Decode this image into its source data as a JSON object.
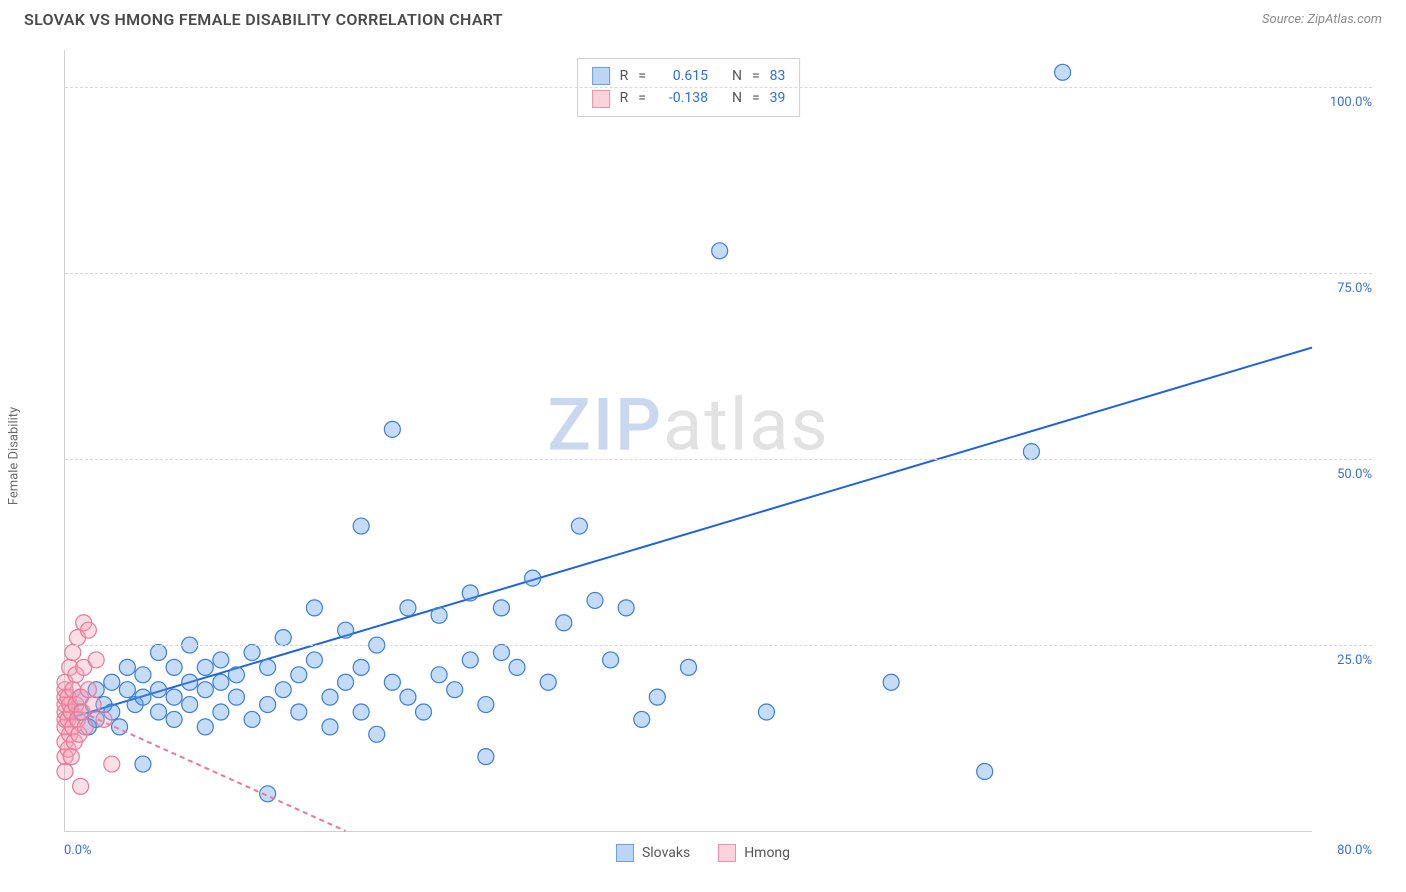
{
  "title": "SLOVAK VS HMONG FEMALE DISABILITY CORRELATION CHART",
  "source_label": "Source: ZipAtlas.com",
  "y_axis_label": "Female Disability",
  "watermark_a": "ZIP",
  "watermark_b": "atlas",
  "chart": {
    "type": "scatter",
    "background_color": "#ffffff",
    "grid_color": "#d8d8d8",
    "axis_color": "#d0d0d0",
    "tick_label_color": "#3b6fd6",
    "tick_fontsize": 13,
    "xlim": [
      0,
      80
    ],
    "ylim": [
      0,
      105
    ],
    "x_origin_label": "0.0%",
    "x_max_label": "80.0%",
    "y_ticks": [
      25,
      50,
      75,
      100
    ],
    "y_tick_labels": [
      "25.0%",
      "50.0%",
      "75.0%",
      "100.0%"
    ],
    "marker_radius": 8,
    "marker_fill_opacity": 0.35,
    "marker_stroke_width": 1.2,
    "trend_line_width": 2,
    "series": [
      {
        "name": "Slovaks",
        "color": "#5a9bed",
        "stroke": "#3c7fd4",
        "trend_color": "#1f63d6",
        "trend_dash": "none",
        "r": 0.615,
        "n": 83,
        "trend_line": {
          "x1": 0,
          "y1": 15,
          "x2": 80,
          "y2": 65
        },
        "points": [
          [
            1,
            16
          ],
          [
            1,
            18
          ],
          [
            1.5,
            14
          ],
          [
            2,
            15
          ],
          [
            2,
            19
          ],
          [
            2.5,
            17
          ],
          [
            3,
            16
          ],
          [
            3,
            20
          ],
          [
            3.5,
            14
          ],
          [
            4,
            19
          ],
          [
            4,
            22
          ],
          [
            4.5,
            17
          ],
          [
            5,
            9
          ],
          [
            5,
            18
          ],
          [
            5,
            21
          ],
          [
            6,
            16
          ],
          [
            6,
            19
          ],
          [
            6,
            24
          ],
          [
            7,
            15
          ],
          [
            7,
            18
          ],
          [
            7,
            22
          ],
          [
            8,
            17
          ],
          [
            8,
            20
          ],
          [
            8,
            25
          ],
          [
            9,
            14
          ],
          [
            9,
            19
          ],
          [
            9,
            22
          ],
          [
            10,
            16
          ],
          [
            10,
            20
          ],
          [
            10,
            23
          ],
          [
            11,
            18
          ],
          [
            11,
            21
          ],
          [
            12,
            15
          ],
          [
            12,
            24
          ],
          [
            13,
            17
          ],
          [
            13,
            22
          ],
          [
            13,
            5
          ],
          [
            14,
            19
          ],
          [
            14,
            26
          ],
          [
            15,
            16
          ],
          [
            15,
            21
          ],
          [
            16,
            23
          ],
          [
            16,
            30
          ],
          [
            17,
            18
          ],
          [
            17,
            14
          ],
          [
            18,
            20
          ],
          [
            18,
            27
          ],
          [
            19,
            16
          ],
          [
            19,
            22
          ],
          [
            19,
            41
          ],
          [
            20,
            13
          ],
          [
            20,
            25
          ],
          [
            21,
            20
          ],
          [
            21,
            54
          ],
          [
            22,
            18
          ],
          [
            22,
            30
          ],
          [
            23,
            16
          ],
          [
            24,
            21
          ],
          [
            24,
            29
          ],
          [
            25,
            19
          ],
          [
            26,
            23
          ],
          [
            26,
            32
          ],
          [
            27,
            17
          ],
          [
            27,
            10
          ],
          [
            28,
            24
          ],
          [
            28,
            30
          ],
          [
            29,
            22
          ],
          [
            30,
            34
          ],
          [
            31,
            20
          ],
          [
            32,
            28
          ],
          [
            33,
            41
          ],
          [
            34,
            31
          ],
          [
            35,
            23
          ],
          [
            36,
            30
          ],
          [
            37,
            15
          ],
          [
            38,
            18
          ],
          [
            40,
            22
          ],
          [
            42,
            78
          ],
          [
            45,
            16
          ],
          [
            53,
            20
          ],
          [
            59,
            8
          ],
          [
            62,
            51
          ],
          [
            64,
            102
          ]
        ]
      },
      {
        "name": "Hmong",
        "color": "#f5a3b8",
        "stroke": "#e77a98",
        "trend_color": "#e77a98",
        "trend_dash": "5,4",
        "r": -0.138,
        "n": 39,
        "trend_line": {
          "x1": 0,
          "y1": 17,
          "x2": 18,
          "y2": 0
        },
        "points": [
          [
            0,
            8
          ],
          [
            0,
            10
          ],
          [
            0,
            12
          ],
          [
            0,
            14
          ],
          [
            0,
            15
          ],
          [
            0,
            16
          ],
          [
            0,
            17
          ],
          [
            0,
            18
          ],
          [
            0,
            19
          ],
          [
            0,
            20
          ],
          [
            0.2,
            11
          ],
          [
            0.2,
            15
          ],
          [
            0.2,
            18
          ],
          [
            0.3,
            13
          ],
          [
            0.3,
            17
          ],
          [
            0.3,
            22
          ],
          [
            0.4,
            10
          ],
          [
            0.4,
            16
          ],
          [
            0.5,
            14
          ],
          [
            0.5,
            19
          ],
          [
            0.5,
            24
          ],
          [
            0.6,
            12
          ],
          [
            0.7,
            17
          ],
          [
            0.7,
            21
          ],
          [
            0.8,
            15
          ],
          [
            0.8,
            26
          ],
          [
            0.9,
            13
          ],
          [
            1.0,
            18
          ],
          [
            1.0,
            6
          ],
          [
            1.1,
            16
          ],
          [
            1.2,
            22
          ],
          [
            1.2,
            28
          ],
          [
            1.3,
            14
          ],
          [
            1.5,
            19
          ],
          [
            1.5,
            27
          ],
          [
            1.8,
            17
          ],
          [
            2.0,
            23
          ],
          [
            2.5,
            15
          ],
          [
            3.0,
            9
          ]
        ]
      }
    ]
  },
  "legend_top": {
    "r_label": "R",
    "n_label": "N",
    "eq": "="
  },
  "legend_bottom": {
    "items": [
      "Slovaks",
      "Hmong"
    ]
  },
  "colors": {
    "slovak_swatch_fill": "#bcd5f5",
    "slovak_swatch_border": "#6b9fe3",
    "hmong_swatch_fill": "#fcd2dd",
    "hmong_swatch_border": "#e892aa"
  }
}
